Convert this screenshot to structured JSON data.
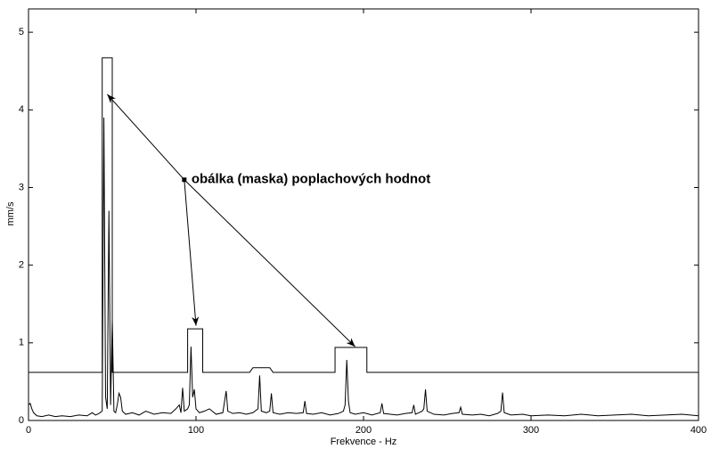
{
  "chart_data": {
    "type": "line",
    "xlabel": "Frekvence - Hz",
    "ylabel": "mm/s",
    "xlim": [
      0,
      400
    ],
    "ylim": [
      0,
      5.3
    ],
    "xticks": [
      0,
      100,
      200,
      300,
      400
    ],
    "yticks": [
      0,
      1,
      2,
      3,
      4,
      5
    ],
    "series": [
      {
        "color": "#000000",
        "x": [
          0,
          44,
          44,
          50,
          50,
          95,
          95,
          104,
          104,
          132,
          134,
          144,
          146,
          183,
          183,
          202,
          202,
          400
        ],
        "values": [
          0.62,
          0.62,
          4.67,
          4.67,
          0.62,
          0.62,
          1.18,
          1.18,
          0.62,
          0.62,
          0.68,
          0.68,
          0.62,
          0.62,
          0.94,
          0.94,
          0.62,
          0.62
        ]
      },
      {
        "color": "#000000",
        "x": [
          0,
          1,
          2,
          3,
          5,
          8,
          12,
          16,
          20,
          25,
          30,
          35,
          38,
          40,
          42,
          44,
          45,
          46,
          47,
          48,
          49,
          50,
          51,
          52,
          53,
          54,
          55,
          56,
          58,
          62,
          66,
          70,
          75,
          80,
          85,
          88,
          90,
          91,
          92,
          93,
          95,
          96,
          97,
          98,
          99,
          100,
          102,
          105,
          108,
          112,
          116,
          118,
          119,
          122,
          126,
          130,
          134,
          137,
          138,
          139,
          142,
          144,
          145,
          146,
          150,
          155,
          160,
          164,
          165,
          166,
          170,
          175,
          180,
          185,
          188,
          189,
          190,
          191,
          192,
          195,
          200,
          205,
          210,
          211,
          212,
          216,
          220,
          225,
          229,
          230,
          231,
          235,
          236,
          237,
          238,
          242,
          248,
          253,
          257,
          258,
          259,
          265,
          270,
          275,
          280,
          282,
          283,
          284,
          288,
          295,
          300,
          310,
          320,
          330,
          340,
          350,
          360,
          370,
          380,
          390,
          400
        ],
        "values": [
          0.2,
          0.22,
          0.15,
          0.1,
          0.06,
          0.05,
          0.07,
          0.05,
          0.06,
          0.05,
          0.07,
          0.06,
          0.1,
          0.07,
          0.09,
          0.12,
          3.9,
          0.3,
          0.15,
          2.7,
          0.2,
          1.3,
          0.12,
          0.1,
          0.2,
          0.35,
          0.3,
          0.12,
          0.08,
          0.1,
          0.07,
          0.12,
          0.08,
          0.1,
          0.09,
          0.15,
          0.2,
          0.1,
          0.42,
          0.12,
          0.15,
          0.2,
          0.95,
          0.3,
          0.4,
          0.15,
          0.1,
          0.12,
          0.15,
          0.08,
          0.1,
          0.38,
          0.12,
          0.09,
          0.1,
          0.08,
          0.1,
          0.15,
          0.58,
          0.12,
          0.1,
          0.12,
          0.35,
          0.1,
          0.08,
          0.1,
          0.09,
          0.1,
          0.25,
          0.09,
          0.08,
          0.1,
          0.07,
          0.09,
          0.12,
          0.2,
          0.78,
          0.25,
          0.1,
          0.08,
          0.1,
          0.07,
          0.1,
          0.22,
          0.09,
          0.08,
          0.07,
          0.09,
          0.1,
          0.2,
          0.08,
          0.12,
          0.15,
          0.4,
          0.12,
          0.08,
          0.07,
          0.09,
          0.1,
          0.17,
          0.08,
          0.07,
          0.08,
          0.06,
          0.09,
          0.12,
          0.36,
          0.1,
          0.07,
          0.08,
          0.06,
          0.07,
          0.06,
          0.08,
          0.06,
          0.07,
          0.08,
          0.06,
          0.07,
          0.08,
          0.06
        ]
      }
    ],
    "annotation": {
      "text": "obálka (maska) poplachových hodnot",
      "x": 93,
      "y": 3.1,
      "arrows": [
        [
          47,
          4.2
        ],
        [
          100,
          1.22
        ],
        [
          195,
          0.95
        ]
      ]
    }
  }
}
